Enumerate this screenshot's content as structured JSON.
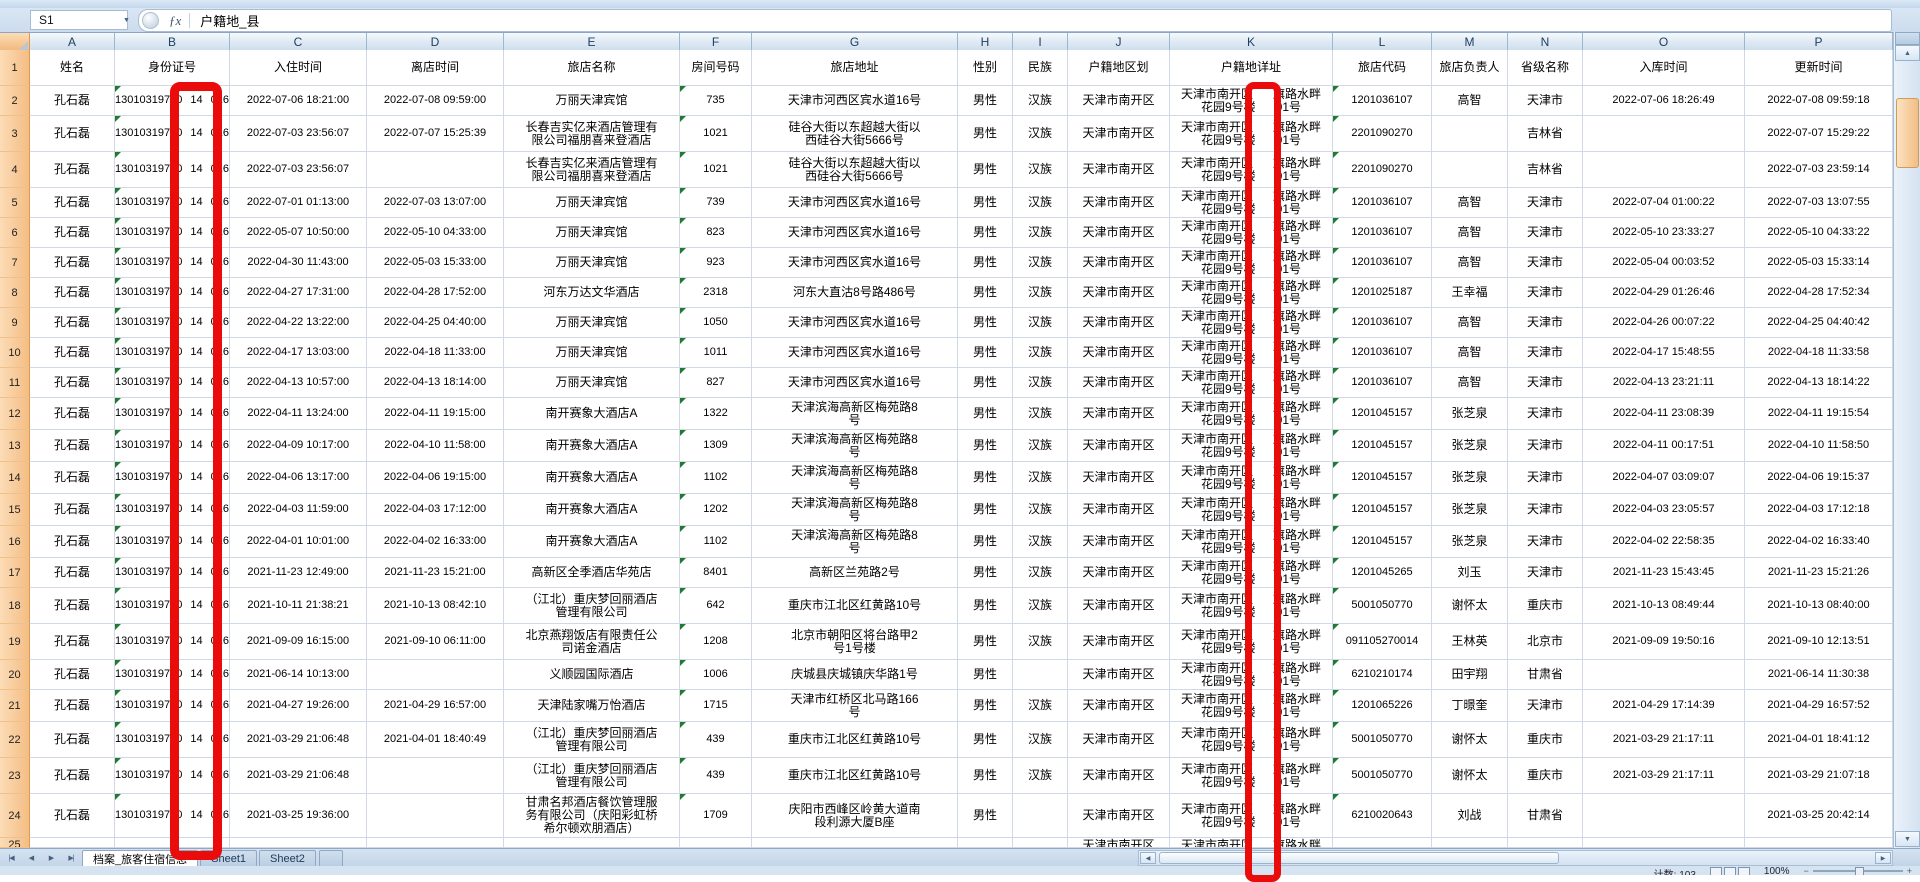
{
  "window": {
    "name_box": "S1",
    "formula": "户籍地_县"
  },
  "icons": {
    "dropdown": "▼",
    "fx": "ƒx",
    "nav_first": "|◀",
    "nav_prev": "◀",
    "nav_next": "▶",
    "nav_last": "▶|",
    "up": "▲",
    "down": "▼",
    "left": "◀",
    "right": "▶",
    "zoom_out": "−",
    "zoom_in": "+"
  },
  "sheet": {
    "col_letters": [
      "A",
      "B",
      "C",
      "D",
      "E",
      "F",
      "G",
      "H",
      "I",
      "J",
      "K",
      "L",
      "M",
      "N",
      "O",
      "P"
    ],
    "headers": [
      "姓名",
      "身份证号",
      "入住时间",
      "离店时间",
      "旅店名称",
      "房间号码",
      "旅店地址",
      "性别",
      "民族",
      "户籍地区划",
      "户籍地详址",
      "旅店代码",
      "旅店负责人",
      "省级名称",
      "入库时间",
      "更新时间"
    ],
    "shared": {
      "name": "孔石磊",
      "id_parts": [
        "13010319750",
        "14",
        "016"
      ],
      "gender": "男性",
      "ethnicity": "汉族",
      "registration_area": "天津市南开区",
      "registration_addr_parts": [
        "天津市南开区",
        "旗路水畔",
        "花园9号楼",
        "01号"
      ]
    },
    "rows": [
      {
        "n": 2,
        "checkin": "2022-07-06 18:21:00",
        "checkout": "2022-07-08 09:59:00",
        "hotel": "万丽天津宾馆",
        "room": "735",
        "addr": "天津市河西区宾水道16号",
        "code": "1201036107",
        "manager": "高智",
        "province": "天津市",
        "stored": "2022-07-06 18:26:49",
        "updated": "2022-07-08 09:59:18"
      },
      {
        "n": 3,
        "checkin": "2022-07-03 23:56:07",
        "checkout": "2022-07-07 15:25:39",
        "hotel": "长春吉实亿来酒店管理有\n限公司福朋喜来登酒店",
        "room": "1021",
        "addr": "硅谷大街以东超越大街以\n西硅谷大街5666号",
        "code": "2201090270",
        "manager": "",
        "province": "吉林省",
        "stored": "",
        "updated": "2022-07-07 15:29:22"
      },
      {
        "n": 4,
        "checkin": "2022-07-03 23:56:07",
        "checkout": "",
        "hotel": "长春吉实亿来酒店管理有\n限公司福朋喜来登酒店",
        "room": "1021",
        "addr": "硅谷大街以东超越大街以\n西硅谷大街5666号",
        "code": "2201090270",
        "manager": "",
        "province": "吉林省",
        "stored": "",
        "updated": "2022-07-03 23:59:14"
      },
      {
        "n": 5,
        "checkin": "2022-07-01 01:13:00",
        "checkout": "2022-07-03 13:07:00",
        "hotel": "万丽天津宾馆",
        "room": "739",
        "addr": "天津市河西区宾水道16号",
        "code": "1201036107",
        "manager": "高智",
        "province": "天津市",
        "stored": "2022-07-04 01:00:22",
        "updated": "2022-07-03 13:07:55"
      },
      {
        "n": 6,
        "checkin": "2022-05-07 10:50:00",
        "checkout": "2022-05-10 04:33:00",
        "hotel": "万丽天津宾馆",
        "room": "823",
        "addr": "天津市河西区宾水道16号",
        "code": "1201036107",
        "manager": "高智",
        "province": "天津市",
        "stored": "2022-05-10 23:33:27",
        "updated": "2022-05-10 04:33:22"
      },
      {
        "n": 7,
        "checkin": "2022-04-30 11:43:00",
        "checkout": "2022-05-03 15:33:00",
        "hotel": "万丽天津宾馆",
        "room": "923",
        "addr": "天津市河西区宾水道16号",
        "code": "1201036107",
        "manager": "高智",
        "province": "天津市",
        "stored": "2022-05-04 00:03:52",
        "updated": "2022-05-03 15:33:14"
      },
      {
        "n": 8,
        "checkin": "2022-04-27 17:31:00",
        "checkout": "2022-04-28 17:52:00",
        "hotel": "河东万达文华酒店",
        "room": "2318",
        "addr": "河东大直沽8号路486号",
        "code": "1201025187",
        "manager": "王幸福",
        "province": "天津市",
        "stored": "2022-04-29 01:26:46",
        "updated": "2022-04-28 17:52:34"
      },
      {
        "n": 9,
        "checkin": "2022-04-22 13:22:00",
        "checkout": "2022-04-25 04:40:00",
        "hotel": "万丽天津宾馆",
        "room": "1050",
        "addr": "天津市河西区宾水道16号",
        "code": "1201036107",
        "manager": "高智",
        "province": "天津市",
        "stored": "2022-04-26 00:07:22",
        "updated": "2022-04-25 04:40:42"
      },
      {
        "n": 10,
        "checkin": "2022-04-17 13:03:00",
        "checkout": "2022-04-18 11:33:00",
        "hotel": "万丽天津宾馆",
        "room": "1011",
        "addr": "天津市河西区宾水道16号",
        "code": "1201036107",
        "manager": "高智",
        "province": "天津市",
        "stored": "2022-04-17 15:48:55",
        "updated": "2022-04-18 11:33:58"
      },
      {
        "n": 11,
        "checkin": "2022-04-13 10:57:00",
        "checkout": "2022-04-13 18:14:00",
        "hotel": "万丽天津宾馆",
        "room": "827",
        "addr": "天津市河西区宾水道16号",
        "code": "1201036107",
        "manager": "高智",
        "province": "天津市",
        "stored": "2022-04-13 23:21:11",
        "updated": "2022-04-13 18:14:22"
      },
      {
        "n": 12,
        "checkin": "2022-04-11 13:24:00",
        "checkout": "2022-04-11 19:15:00",
        "hotel": "南开赛象大酒店A",
        "room": "1322",
        "addr": "天津滨海高新区梅苑路8\n号",
        "code": "1201045157",
        "manager": "张芝泉",
        "province": "天津市",
        "stored": "2022-04-11 23:08:39",
        "updated": "2022-04-11 19:15:54"
      },
      {
        "n": 13,
        "checkin": "2022-04-09 10:17:00",
        "checkout": "2022-04-10 11:58:00",
        "hotel": "南开赛象大酒店A",
        "room": "1309",
        "addr": "天津滨海高新区梅苑路8\n号",
        "code": "1201045157",
        "manager": "张芝泉",
        "province": "天津市",
        "stored": "2022-04-11 00:17:51",
        "updated": "2022-04-10 11:58:50"
      },
      {
        "n": 14,
        "checkin": "2022-04-06 13:17:00",
        "checkout": "2022-04-06 19:15:00",
        "hotel": "南开赛象大酒店A",
        "room": "1102",
        "addr": "天津滨海高新区梅苑路8\n号",
        "code": "1201045157",
        "manager": "张芝泉",
        "province": "天津市",
        "stored": "2022-04-07 03:09:07",
        "updated": "2022-04-06 19:15:37"
      },
      {
        "n": 15,
        "checkin": "2022-04-03 11:59:00",
        "checkout": "2022-04-03 17:12:00",
        "hotel": "南开赛象大酒店A",
        "room": "1202",
        "addr": "天津滨海高新区梅苑路8\n号",
        "code": "1201045157",
        "manager": "张芝泉",
        "province": "天津市",
        "stored": "2022-04-03 23:05:57",
        "updated": "2022-04-03 17:12:18"
      },
      {
        "n": 16,
        "checkin": "2022-04-01 10:01:00",
        "checkout": "2022-04-02 16:33:00",
        "hotel": "南开赛象大酒店A",
        "room": "1102",
        "addr": "天津滨海高新区梅苑路8\n号",
        "code": "1201045157",
        "manager": "张芝泉",
        "province": "天津市",
        "stored": "2022-04-02 22:58:35",
        "updated": "2022-04-02 16:33:40"
      },
      {
        "n": 17,
        "checkin": "2021-11-23 12:49:00",
        "checkout": "2021-11-23 15:21:00",
        "hotel": "高新区全季酒店华苑店",
        "room": "8401",
        "addr": "高新区兰苑路2号",
        "code": "1201045265",
        "manager": "刘玉",
        "province": "天津市",
        "stored": "2021-11-23 15:43:45",
        "updated": "2021-11-23 15:21:26"
      },
      {
        "n": 18,
        "checkin": "2021-10-11 21:38:21",
        "checkout": "2021-10-13 08:42:10",
        "hotel": "（江北）重庆梦回丽酒店\n管理有限公司",
        "room": "642",
        "addr": "重庆市江北区红黄路10号",
        "code": "5001050770",
        "manager": "谢怀太",
        "province": "重庆市",
        "stored": "2021-10-13 08:49:44",
        "updated": "2021-10-13 08:40:00"
      },
      {
        "n": 19,
        "checkin": "2021-09-09 16:15:00",
        "checkout": "2021-09-10 06:11:00",
        "hotel": "北京燕翔饭店有限责任公\n司诺金酒店",
        "room": "1208",
        "addr": "北京市朝阳区将台路甲2\n号1号楼",
        "code": "091105270014",
        "manager": "王林英",
        "province": "北京市",
        "stored": "2021-09-09 19:50:16",
        "updated": "2021-09-10 12:13:51"
      },
      {
        "n": 20,
        "checkin": "2021-06-14 10:13:00",
        "checkout": "",
        "hotel": "义顺园国际酒店",
        "room": "1006",
        "addr": "庆城县庆城镇庆华路1号",
        "ethnicity": "",
        "code": "6210210174",
        "manager": "田宇翔",
        "province": "甘肃省",
        "stored": "",
        "updated": "2021-06-14 11:30:38"
      },
      {
        "n": 21,
        "checkin": "2021-04-27 19:26:00",
        "checkout": "2021-04-29 16:57:00",
        "hotel": "天津陆家嘴万怡酒店",
        "room": "1715",
        "addr": "天津市红桥区北马路166\n号",
        "code": "1201065226",
        "manager": "丁暻奎",
        "province": "天津市",
        "stored": "2021-04-29 17:14:39",
        "updated": "2021-04-29 16:57:52"
      },
      {
        "n": 22,
        "checkin": "2021-03-29 21:06:48",
        "checkout": "2021-04-01 18:40:49",
        "hotel": "（江北）重庆梦回丽酒店\n管理有限公司",
        "room": "439",
        "addr": "重庆市江北区红黄路10号",
        "code": "5001050770",
        "manager": "谢怀太",
        "province": "重庆市",
        "stored": "2021-03-29 21:17:11",
        "updated": "2021-04-01 18:41:12"
      },
      {
        "n": 23,
        "checkin": "2021-03-29 21:06:48",
        "checkout": "",
        "hotel": "（江北）重庆梦回丽酒店\n管理有限公司",
        "room": "439",
        "addr": "重庆市江北区红黄路10号",
        "code": "5001050770",
        "manager": "谢怀太",
        "province": "重庆市",
        "stored": "2021-03-29 21:17:11",
        "updated": "2021-03-29 21:07:18"
      },
      {
        "n": 24,
        "checkin": "2021-03-25 19:36:00",
        "checkout": "",
        "hotel": "甘肃名邦酒店餐饮管理服\n务有限公司（庆阳彩虹桥\n希尔顿欢朋酒店）",
        "room": "1709",
        "addr": "庆阳市西峰区岭黄大道南\n段利源大厦B座",
        "ethnicity": "",
        "code": "6210020643",
        "manager": "刘战",
        "province": "甘肃省",
        "stored": "",
        "updated": "2021-03-25 20:42:14"
      }
    ],
    "partial_row": {
      "n": "25",
      "registration_area": "天津市南开区",
      "addr_left": "天津市南开区",
      "addr_right": "旗路水畔"
    }
  },
  "tabs": {
    "items": [
      "档案_旅客住宿信息",
      "Sheet1",
      "Sheet2"
    ],
    "active": "档案_旅客住宿信息"
  },
  "status": {
    "count": "计数: 103",
    "zoom": "100%"
  },
  "annotations": {
    "box_color": "#ea0b0b"
  }
}
